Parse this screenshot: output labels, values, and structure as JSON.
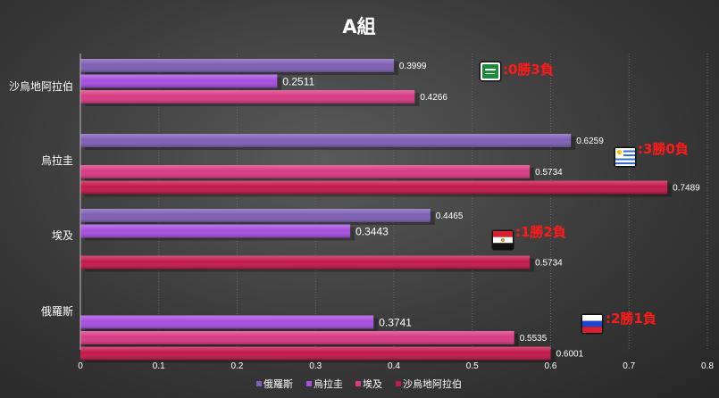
{
  "chart_data": {
    "type": "bar",
    "orientation": "horizontal",
    "title": "A組",
    "categories": [
      "沙烏地阿拉伯",
      "烏拉圭",
      "埃及",
      "俄羅斯"
    ],
    "series": [
      {
        "name": "俄羅斯",
        "color": "#7e5fb5",
        "values": [
          0.3999,
          0.6259,
          0.4465,
          null
        ]
      },
      {
        "name": "烏拉圭",
        "color": "#a64ee0",
        "values": [
          0.2511,
          null,
          0.3443,
          0.3741
        ]
      },
      {
        "name": "埃及",
        "color": "#d93a84",
        "values": [
          0.4266,
          0.5734,
          null,
          0.5535
        ]
      },
      {
        "name": "沙烏地阿拉伯",
        "color": "#c2184a",
        "values": [
          null,
          0.7489,
          0.5734,
          0.6001
        ]
      }
    ],
    "data_labels": [
      [
        "0.3999",
        "0.2511",
        "0.4266",
        ""
      ],
      [
        "0.6259",
        "",
        "0.5734",
        "0.7489"
      ],
      [
        "0.4465",
        "0.3443",
        "",
        "0.5734"
      ],
      [
        "",
        "0.3741",
        "0.5535",
        "0.6001"
      ]
    ],
    "x_ticks": [
      "0",
      "0.1",
      "0.2",
      "0.3",
      "0.4",
      "0.5",
      "0.6",
      "0.7",
      "0.8"
    ],
    "xlim": [
      0,
      0.8
    ],
    "grid": true,
    "legend_position": "bottom",
    "annotations": [
      {
        "category": "沙烏地阿拉伯",
        "text": ":0勝3負",
        "flag": "saudi-arabia-flag-icon"
      },
      {
        "category": "烏拉圭",
        "text": ":3勝0負",
        "flag": "uruguay-flag-icon"
      },
      {
        "category": "埃及",
        "text": ":1勝2負",
        "flag": "egypt-flag-icon"
      },
      {
        "category": "俄羅斯",
        "text": ":2勝1負",
        "flag": "russia-flag-icon"
      }
    ],
    "annotation_color": "#ff1a1a"
  }
}
